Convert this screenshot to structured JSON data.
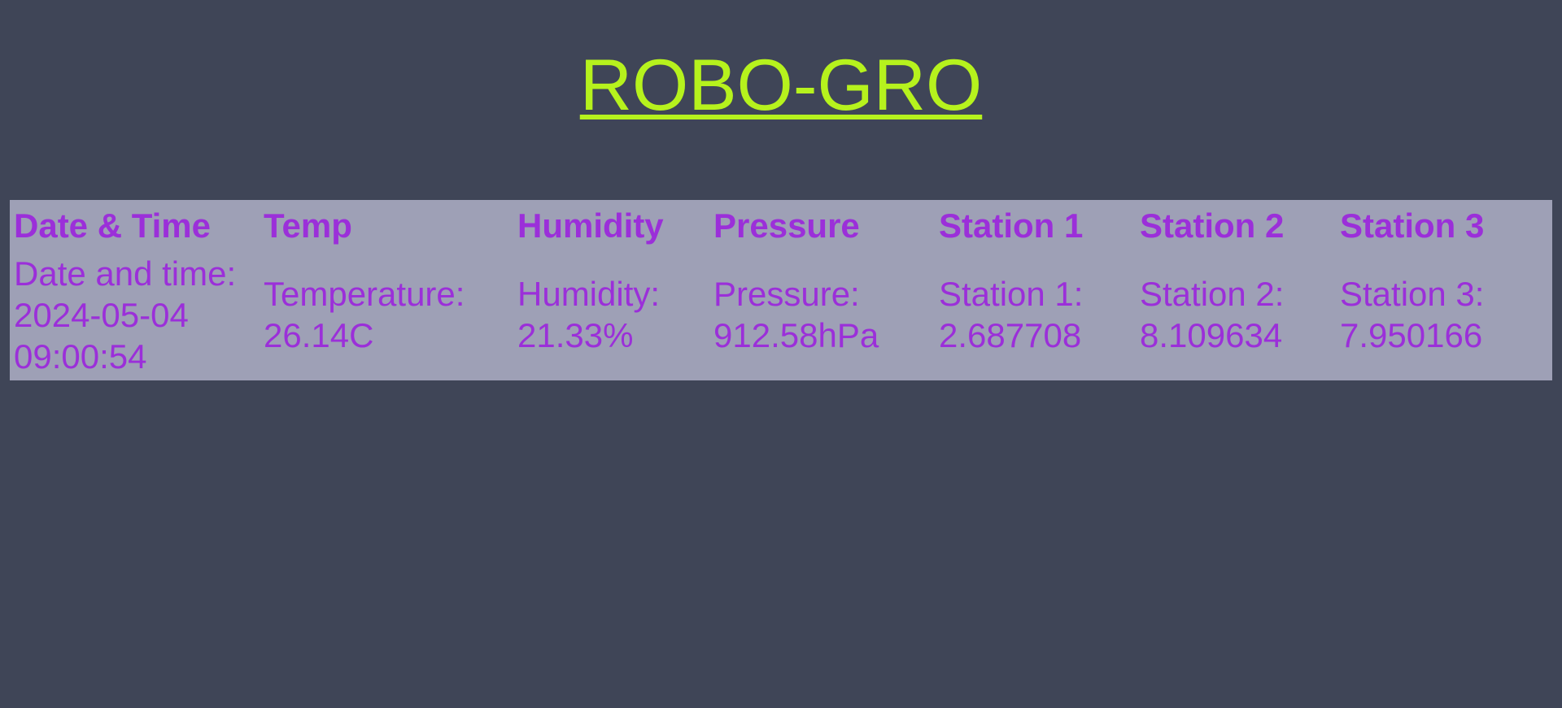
{
  "page": {
    "title": "ROBO-GRO"
  },
  "table": {
    "headers": [
      "Date & Time",
      "Temp",
      "Humidity",
      "Pressure",
      "Station 1",
      "Station 2",
      "Station 3"
    ],
    "row": {
      "datetime": {
        "label": "Date and time:",
        "date": "2024-05-04",
        "time": "09:00:54"
      },
      "temperature": {
        "label": "Temperature:",
        "value": "26.14C"
      },
      "humidity": {
        "label": "Humidity:",
        "value": "21.33%"
      },
      "pressure": {
        "label": "Pressure:",
        "value": "912.58hPa"
      },
      "station1": {
        "label": "Station 1:",
        "value": "2.687708"
      },
      "station2": {
        "label": "Station 2:",
        "value": "8.109634"
      },
      "station3": {
        "label": "Station 3:",
        "value": "7.950166"
      }
    }
  },
  "colors": {
    "background": "#3f4557",
    "title": "#b6f21d",
    "table_background": "#9ea0b6",
    "table_text": "#9b2fd9"
  }
}
